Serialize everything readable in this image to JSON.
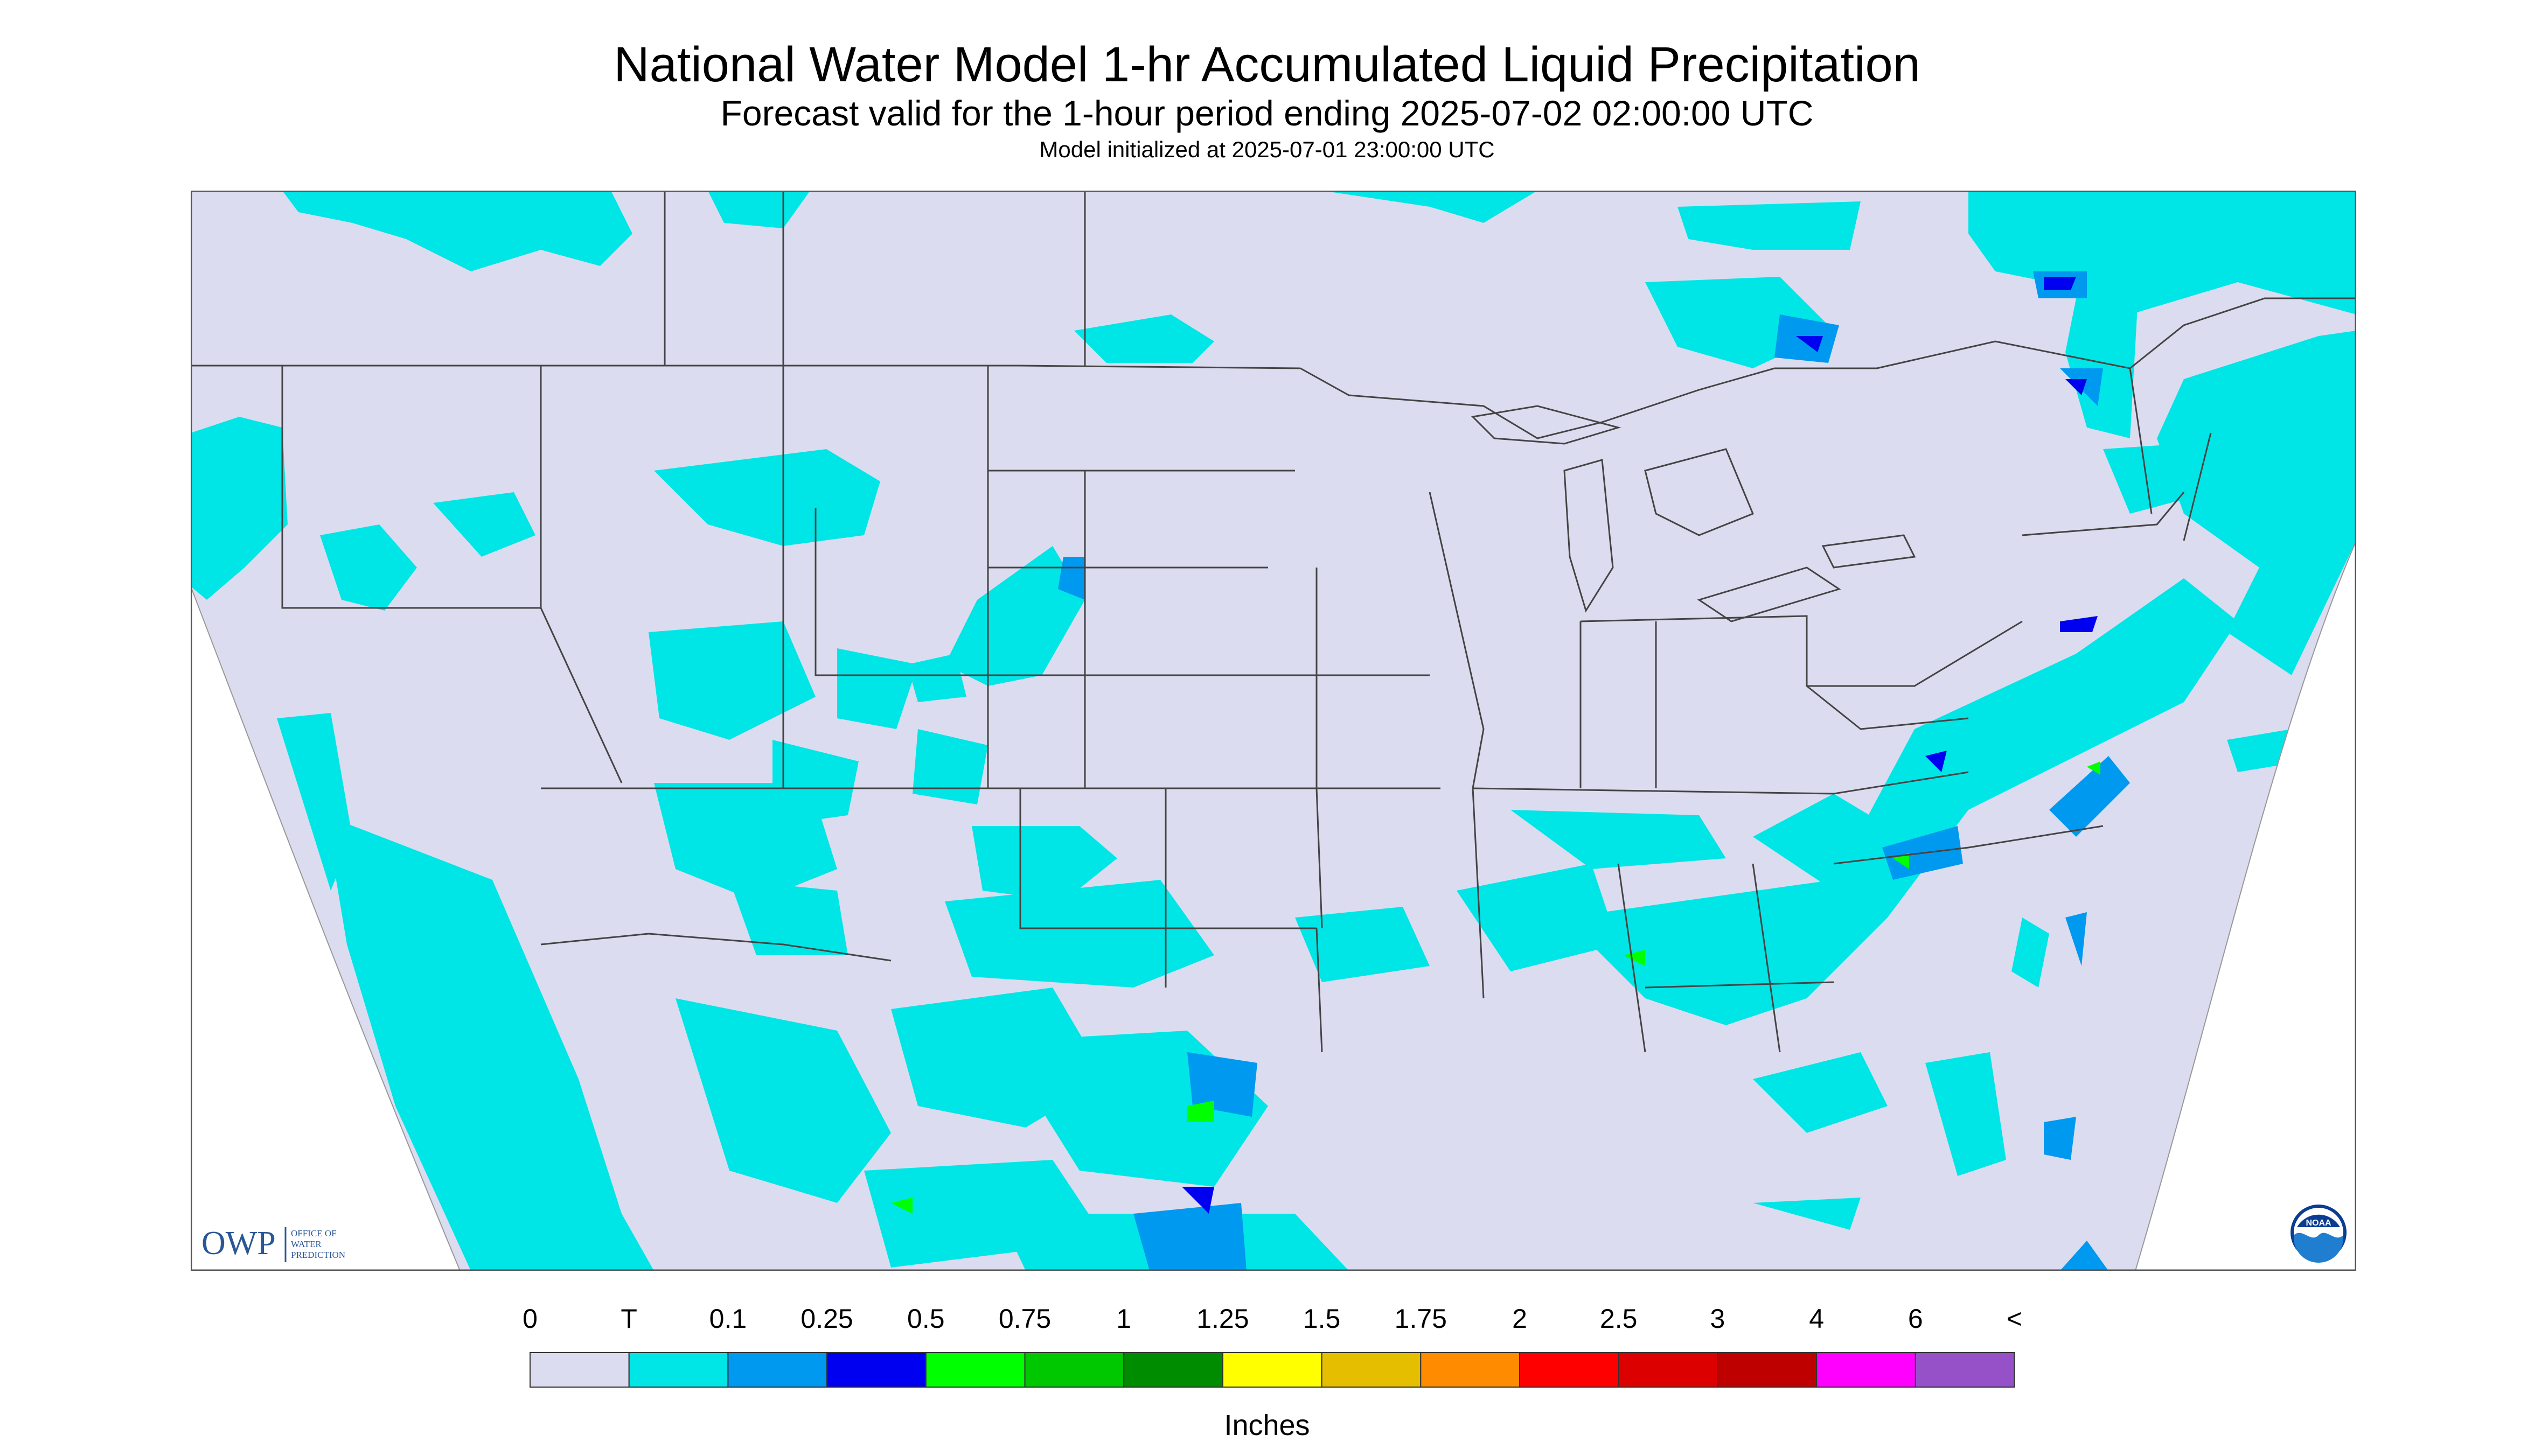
{
  "header": {
    "title": "National Water Model 1-hr Accumulated Liquid Precipitation",
    "subtitle": "Forecast valid for the 1-hour period ending 2025-07-02 02:00:00 UTC",
    "init": "Model initialized at 2025-07-01 23:00:00 UTC"
  },
  "logos": {
    "owp_acronym": "OWP",
    "owp_line1": "OFFICE OF",
    "owp_line2": "WATER",
    "owp_line3": "PREDICTION",
    "noaa": "NOAA"
  },
  "legend": {
    "labels": [
      "0",
      "T",
      "0.1",
      "0.25",
      "0.5",
      "0.75",
      "1",
      "1.25",
      "1.5",
      "1.75",
      "2",
      "2.5",
      "3",
      "4",
      "6",
      "<"
    ],
    "colors": [
      "#dcdcf0",
      "#00e6e6",
      "#0099f0",
      "#0000f0",
      "#00ff00",
      "#00c800",
      "#008c00",
      "#ffff00",
      "#e6be00",
      "#ff8c00",
      "#ff0000",
      "#dc0000",
      "#be0000",
      "#ff00ff",
      "#9650c8"
    ],
    "units": "Inches"
  },
  "colors": {
    "no_data_land": "#dcdcf0",
    "trace": "#00e6e6",
    "light": "#0099f0",
    "moderate": "#0000f0",
    "heavy": "#00ff00"
  }
}
